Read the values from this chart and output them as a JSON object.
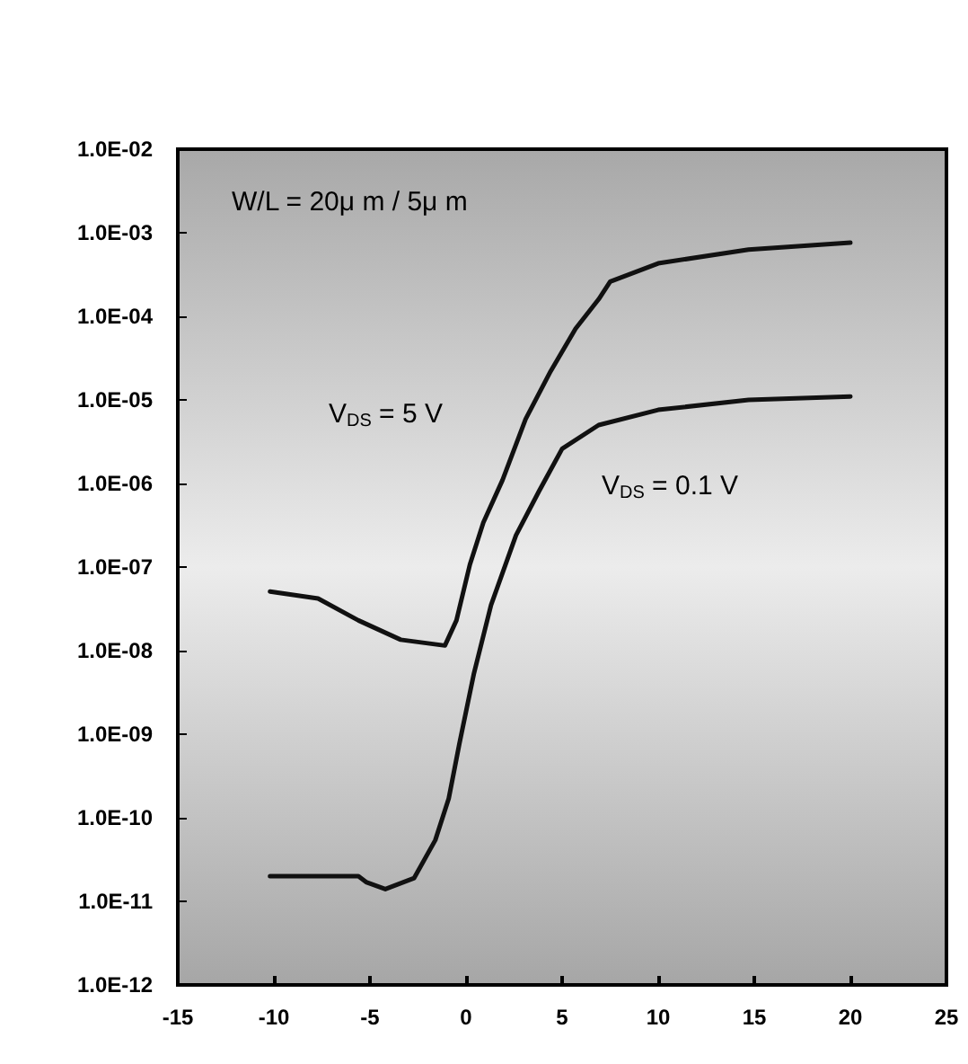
{
  "chart_data": {
    "type": "line",
    "log": "y",
    "grid": false,
    "marker": "none",
    "line_style": "solid",
    "xlim": [
      -15,
      25
    ],
    "xticks": [
      -15,
      -10,
      -5,
      0,
      5,
      10,
      15,
      20,
      25
    ],
    "ylim": [
      1e-12,
      0.01
    ],
    "yticks": [
      {
        "value": 1e-12,
        "label": "1.0E-12"
      },
      {
        "value": 1e-11,
        "label": "1.0E-11"
      },
      {
        "value": 1e-10,
        "label": "1.0E-10"
      },
      {
        "value": 1e-09,
        "label": "1.0E-09"
      },
      {
        "value": 1e-08,
        "label": "1.0E-08"
      },
      {
        "value": 1e-07,
        "label": "1.0E-07"
      },
      {
        "value": 1e-06,
        "label": "1.0E-06"
      },
      {
        "value": 1e-05,
        "label": "1.0E-05"
      },
      {
        "value": 0.0001,
        "label": "1.0E-04"
      },
      {
        "value": 0.001,
        "label": "1.0E-03"
      },
      {
        "value": 0.01,
        "label": "1.0E-02"
      }
    ],
    "series": [
      {
        "color": "#111111",
        "x": [
          -10.2,
          -7.7,
          -5.6,
          -3.4,
          -1.1,
          -0.5,
          0.2,
          0.9,
          1.9,
          3.1,
          4.4,
          5.7,
          6.9,
          7.5,
          10.0,
          14.7,
          20.0
        ],
        "values": [
          5.1e-08,
          4.2e-08,
          2.3e-08,
          1.35e-08,
          1.15e-08,
          2.3e-08,
          1.07e-07,
          3.4e-07,
          1.1e-06,
          5.9e-06,
          2.2e-05,
          7.1e-05,
          0.00016,
          0.00026,
          0.00043,
          0.00063,
          0.00076
        ]
      },
      {
        "color": "#111111",
        "x": [
          -10.2,
          -5.6,
          -5.2,
          -4.2,
          -2.7,
          -1.6,
          -0.9,
          -0.35,
          0.4,
          1.3,
          2.6,
          3.8,
          5.0,
          6.9,
          10.0,
          14.7,
          20.0
        ],
        "values": [
          2e-11,
          2e-11,
          1.7e-11,
          1.4e-11,
          1.9e-11,
          5.4e-11,
          1.7e-10,
          7.6e-10,
          5.2e-09,
          3.5e-08,
          2.4e-07,
          8.1e-07,
          2.6e-06,
          5e-06,
          7.6e-06,
          1e-05,
          1.1e-05
        ]
      }
    ],
    "annotations": [
      "W/L = 20μ m / 5μ m",
      "V$_{DS}$ = 5 V",
      "V$_{DS}$ = 0.1 V"
    ]
  }
}
